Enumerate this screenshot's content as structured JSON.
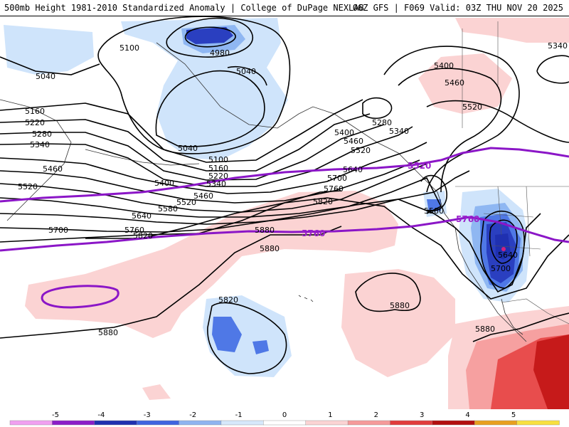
{
  "header": {
    "title_left": "500mb Height 1981-2010 Standardized Anomaly | College of DuPage NEXLAB",
    "title_right": "06Z GFS | F069 Valid: 03Z THU NOV 20 2025"
  },
  "colors": {
    "neg_1": "#cfe4fb",
    "neg_2": "#8fb7f2",
    "neg_3": "#4f78e6",
    "neg_4": "#2a3fc0",
    "pos_1": "#fbd3d3",
    "pos_2": "#f6a0a0",
    "pos_3": "#e84d4d",
    "pos_4": "#c61a1a",
    "thick_contour": "#9a20cc"
  },
  "contour_labels": [
    "5040",
    "5100",
    "4980",
    "5040",
    "5160",
    "5220",
    "5280",
    "5340",
    "5460",
    "5520",
    "5400",
    "5460",
    "5520",
    "5580",
    "5640",
    "5700",
    "5760",
    "5820",
    "5880",
    "5040",
    "5100",
    "5160",
    "5220",
    "5340",
    "5280",
    "5340",
    "5400",
    "5460",
    "5520",
    "5400",
    "5460",
    "5520",
    "5340",
    "5700",
    "5640",
    "5760",
    "5820",
    "5880",
    "5580",
    "5640",
    "5700",
    "5820",
    "5880",
    "5880",
    "5880"
  ],
  "thick_labels": [
    "5520",
    "5760",
    "5760"
  ],
  "legend": {
    "ticks": [
      "-5",
      "-4",
      "-3",
      "-2",
      "-1",
      "0",
      "1",
      "2",
      "3",
      "4",
      "5"
    ],
    "colors": [
      "#f0a0f0",
      "#8b1ec8",
      "#1f30b0",
      "#3f64e0",
      "#8fb4f0",
      "#d6e8fb",
      "#ffffff",
      "#fbd3d3",
      "#f59a9a",
      "#e13c3c",
      "#b30f0f",
      "#e8a020",
      "#f8e040"
    ]
  }
}
